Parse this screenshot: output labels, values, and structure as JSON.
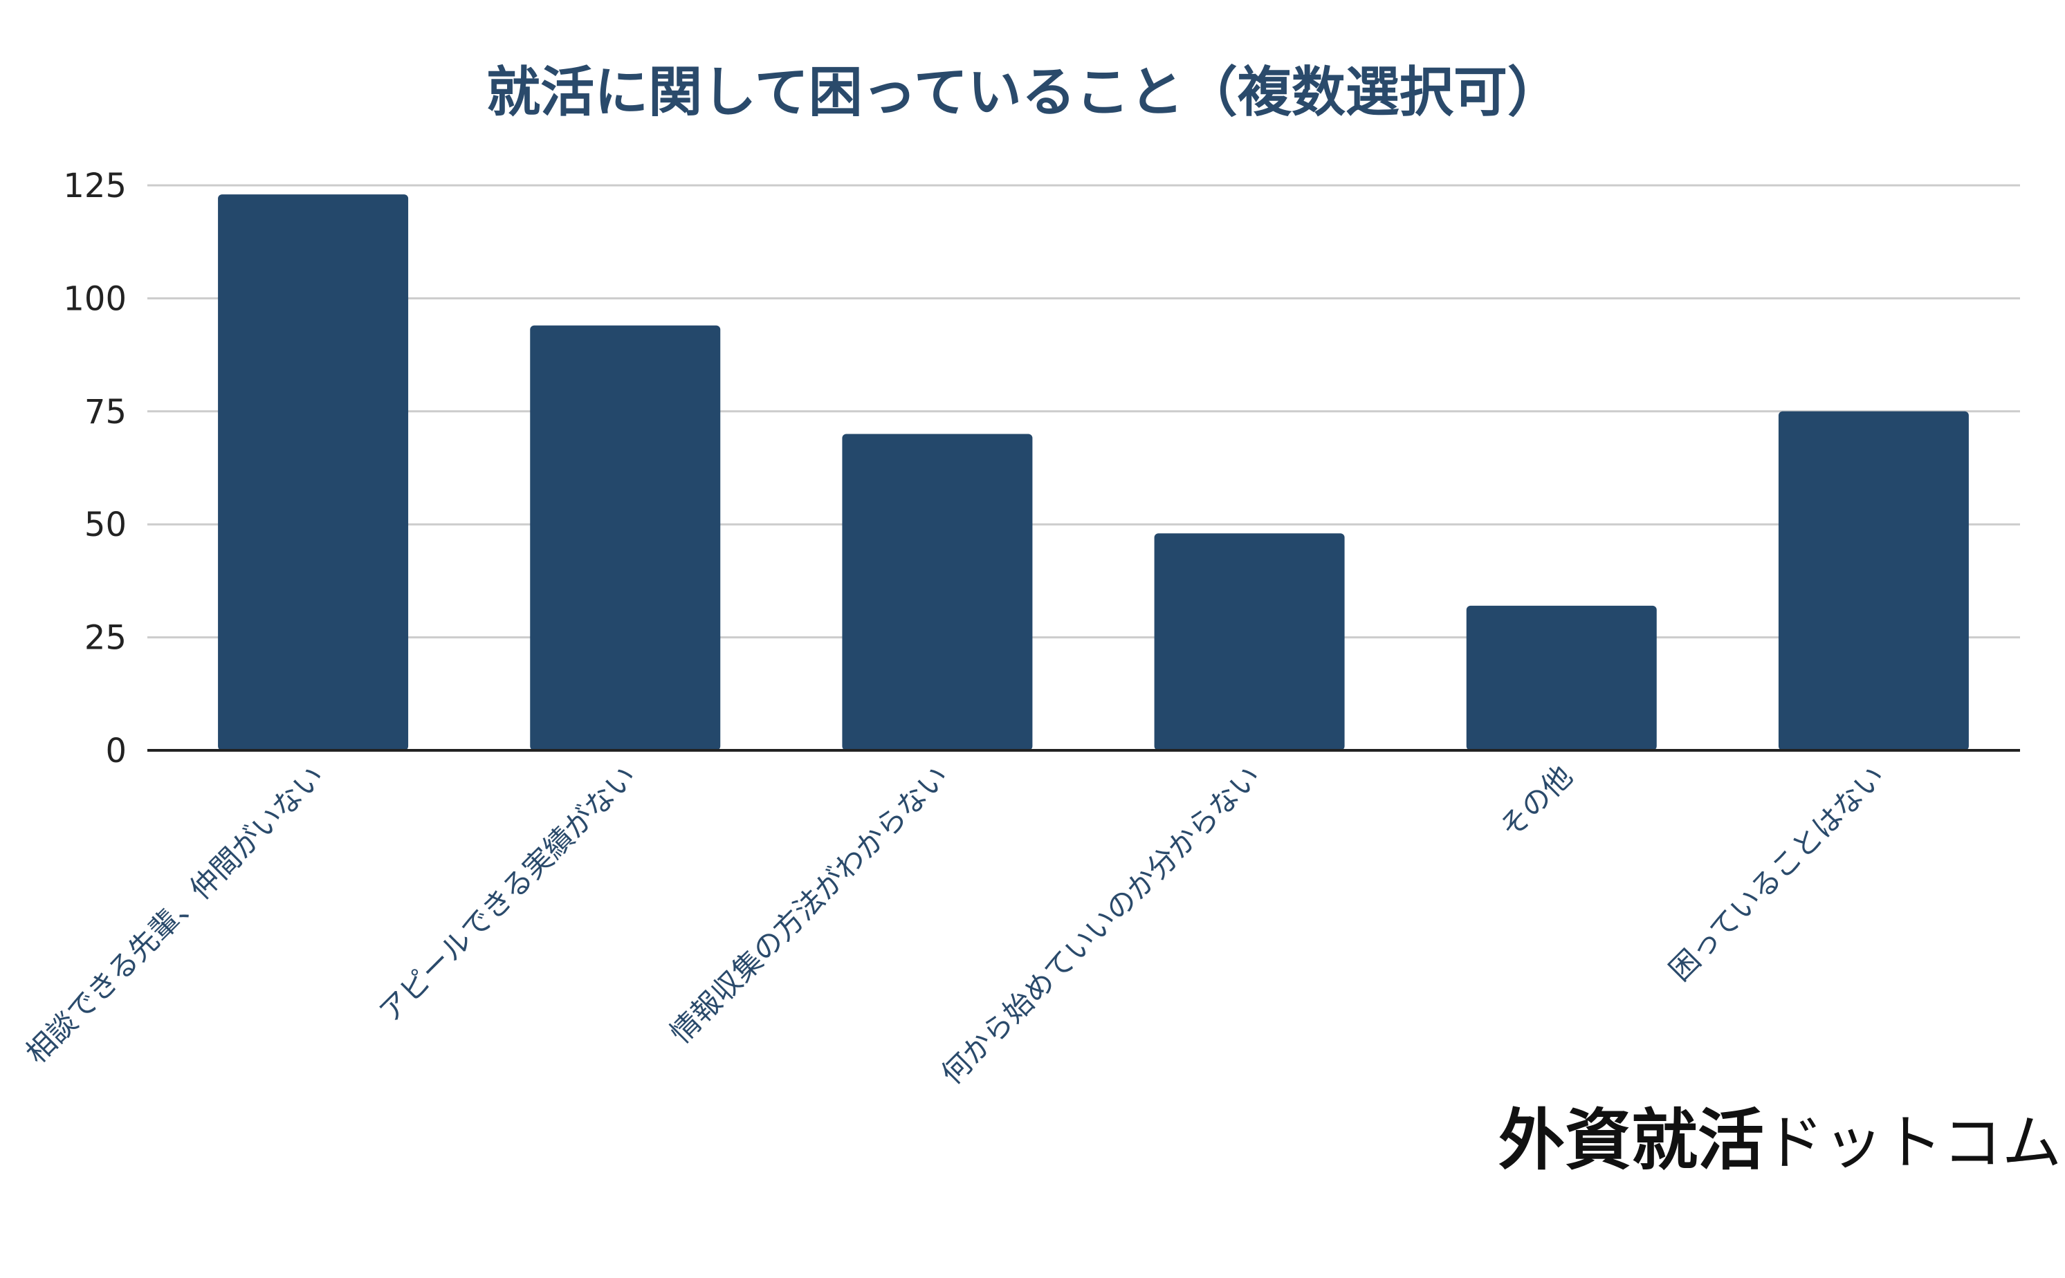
{
  "chart_data": {
    "type": "bar",
    "title": "就活に関して困っていること（複数選択可）",
    "xlabel": "",
    "ylabel": "",
    "categories": [
      "相談できる先輩、仲間がいない",
      "アピールできる実績がない",
      "情報収集の方法がわからない",
      "何から始めていいのか分からない",
      "その他",
      "困っていることはない"
    ],
    "values": [
      123,
      94,
      70,
      48,
      32,
      75
    ],
    "ylim": [
      0,
      125
    ],
    "yticks": [
      0,
      25,
      50,
      75,
      100,
      125
    ],
    "grid": true,
    "bar_color": "#24486b"
  },
  "brand": {
    "logo_main": "外資就活",
    "logo_sub": "ドットコム"
  }
}
